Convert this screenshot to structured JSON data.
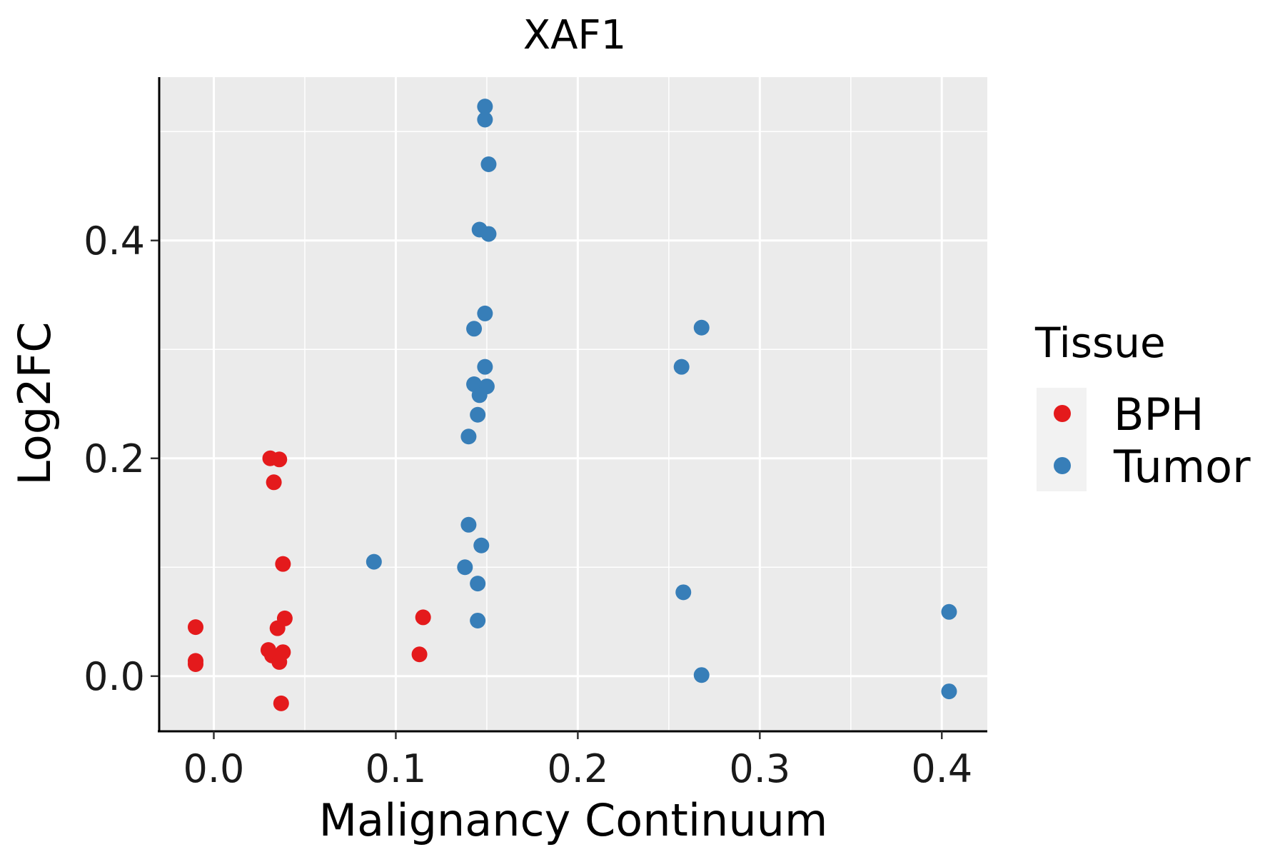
{
  "colors": {
    "panel_background": "#EBEBEB",
    "grid": "#FFFFFF",
    "axis": "#000000",
    "BPH": "#E41A1C",
    "Tumor": "#377EB8"
  },
  "chart_data": {
    "type": "scatter",
    "title": "XAF1",
    "xlabel": "Malignancy Continuum",
    "ylabel": "Log2FC",
    "xlim": [
      -0.03,
      0.425
    ],
    "ylim": [
      -0.05,
      0.55
    ],
    "x_ticks": [
      0.0,
      0.1,
      0.2,
      0.3,
      0.4
    ],
    "x_tick_labels": [
      "0.0",
      "0.1",
      "0.2",
      "0.3",
      "0.4"
    ],
    "y_ticks": [
      0.0,
      0.2,
      0.4
    ],
    "y_tick_labels": [
      "0.0",
      "0.2",
      "0.4"
    ],
    "grid": true,
    "legend": {
      "title": "Tissue",
      "position": "right"
    },
    "series": [
      {
        "name": "BPH",
        "points": [
          {
            "x": -0.01,
            "y": 0.045
          },
          {
            "x": -0.01,
            "y": 0.014
          },
          {
            "x": -0.01,
            "y": 0.011
          },
          {
            "x": 0.031,
            "y": 0.2
          },
          {
            "x": 0.036,
            "y": 0.199
          },
          {
            "x": 0.033,
            "y": 0.178
          },
          {
            "x": 0.038,
            "y": 0.103
          },
          {
            "x": 0.039,
            "y": 0.053
          },
          {
            "x": 0.035,
            "y": 0.044
          },
          {
            "x": 0.03,
            "y": 0.024
          },
          {
            "x": 0.032,
            "y": 0.019
          },
          {
            "x": 0.038,
            "y": 0.022
          },
          {
            "x": 0.036,
            "y": 0.013
          },
          {
            "x": 0.037,
            "y": -0.025
          },
          {
            "x": 0.115,
            "y": 0.054
          },
          {
            "x": 0.113,
            "y": 0.02
          }
        ]
      },
      {
        "name": "Tumor",
        "points": [
          {
            "x": 0.149,
            "y": 0.523
          },
          {
            "x": 0.149,
            "y": 0.511
          },
          {
            "x": 0.151,
            "y": 0.47
          },
          {
            "x": 0.146,
            "y": 0.41
          },
          {
            "x": 0.151,
            "y": 0.406
          },
          {
            "x": 0.149,
            "y": 0.333
          },
          {
            "x": 0.143,
            "y": 0.319
          },
          {
            "x": 0.149,
            "y": 0.284
          },
          {
            "x": 0.143,
            "y": 0.268
          },
          {
            "x": 0.15,
            "y": 0.266
          },
          {
            "x": 0.146,
            "y": 0.258
          },
          {
            "x": 0.145,
            "y": 0.24
          },
          {
            "x": 0.14,
            "y": 0.22
          },
          {
            "x": 0.14,
            "y": 0.139
          },
          {
            "x": 0.147,
            "y": 0.12
          },
          {
            "x": 0.138,
            "y": 0.1
          },
          {
            "x": 0.145,
            "y": 0.085
          },
          {
            "x": 0.145,
            "y": 0.051
          },
          {
            "x": 0.088,
            "y": 0.105
          },
          {
            "x": 0.268,
            "y": 0.32
          },
          {
            "x": 0.257,
            "y": 0.284
          },
          {
            "x": 0.258,
            "y": 0.077
          },
          {
            "x": 0.268,
            "y": 0.001
          },
          {
            "x": 0.404,
            "y": 0.059
          },
          {
            "x": 0.404,
            "y": -0.014
          }
        ]
      }
    ]
  }
}
